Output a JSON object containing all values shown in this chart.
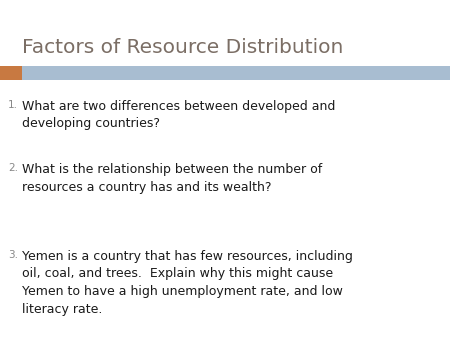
{
  "title": "Factors of Resource Distribution",
  "title_color": "#7b6e65",
  "title_fontsize": 14.5,
  "background_color": "#ffffff",
  "header_bar_color": "#a8bdd1",
  "header_bar_left_color": "#c87941",
  "items": [
    {
      "number": "1.",
      "text": "What are two differences between developed and\ndeveloping countries?"
    },
    {
      "number": "2.",
      "text": "What is the relationship between the number of\nresources a country has and its wealth?"
    },
    {
      "number": "3.",
      "text": "Yemen is a country that has few resources, including\noil, coal, and trees.  Explain why this might cause\nYemen to have a high unemployment rate, and low\nliteracy rate."
    }
  ],
  "item_fontsize": 9.0,
  "item_color": "#1a1a1a",
  "number_color": "#888888",
  "number_fontsize": 7.5,
  "figwidth": 4.5,
  "figheight": 3.38,
  "dpi": 100
}
